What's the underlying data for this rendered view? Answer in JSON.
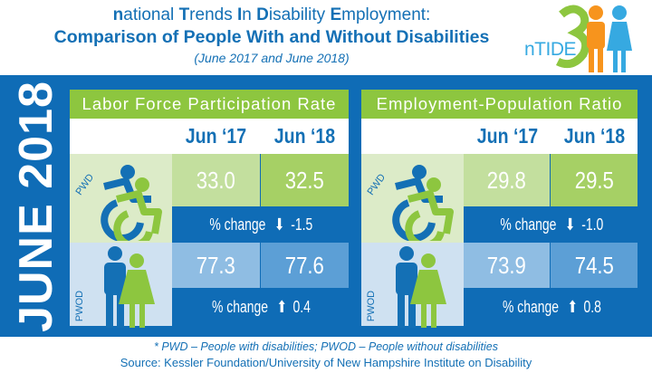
{
  "header": {
    "title_parts": [
      {
        "bold": "n",
        "rest": "ational "
      },
      {
        "bold": "T",
        "rest": "rends "
      },
      {
        "bold": "I",
        "rest": "n "
      },
      {
        "bold": "D",
        "rest": "isability "
      },
      {
        "bold": "E",
        "rest": "mployment:"
      }
    ],
    "subtitle": "Comparison of People With and Without Disabilities",
    "date_range": "(June 2017 and June 2018)",
    "logo_text": "nTIDE"
  },
  "vertical_label": "JUNE 2018",
  "colors": {
    "blue": "#0f6cb6",
    "green": "#8dc63f",
    "pwd_bg": "#dcebc8",
    "pwod_bg": "#cfe1f1",
    "pwd_17": "#c3df9e",
    "pwd_18": "#a6d065",
    "pwod_17": "#8fbde3",
    "pwod_18": "#5c9fd6"
  },
  "panels": [
    {
      "title": "Labor Force Participation Rate",
      "col1": "Jun ‘17",
      "col2": "Jun ‘18",
      "pwd": {
        "label": "PWD",
        "v17": "33.0",
        "v18": "32.5",
        "change_label": "% change",
        "change_dir": "down",
        "change": "-1.5"
      },
      "pwod": {
        "label": "PWOD",
        "v17": "77.3",
        "v18": "77.6",
        "change_label": "% change",
        "change_dir": "up",
        "change": "0.4"
      }
    },
    {
      "title": "Employment-Population Ratio",
      "col1": "Jun ‘17",
      "col2": "Jun ‘18",
      "pwd": {
        "label": "PWD",
        "v17": "29.8",
        "v18": "29.5",
        "change_label": "% change",
        "change_dir": "down",
        "change": "-1.0"
      },
      "pwod": {
        "label": "PWOD",
        "v17": "73.9",
        "v18": "74.5",
        "change_label": "% change",
        "change_dir": "up",
        "change": "0.8"
      }
    }
  ],
  "footer": {
    "note": "* PWD – People with disabilities;  PWOD – People without disabilities",
    "source": "Source: Kessler Foundation/University of New Hampshire Institute on Disability"
  }
}
